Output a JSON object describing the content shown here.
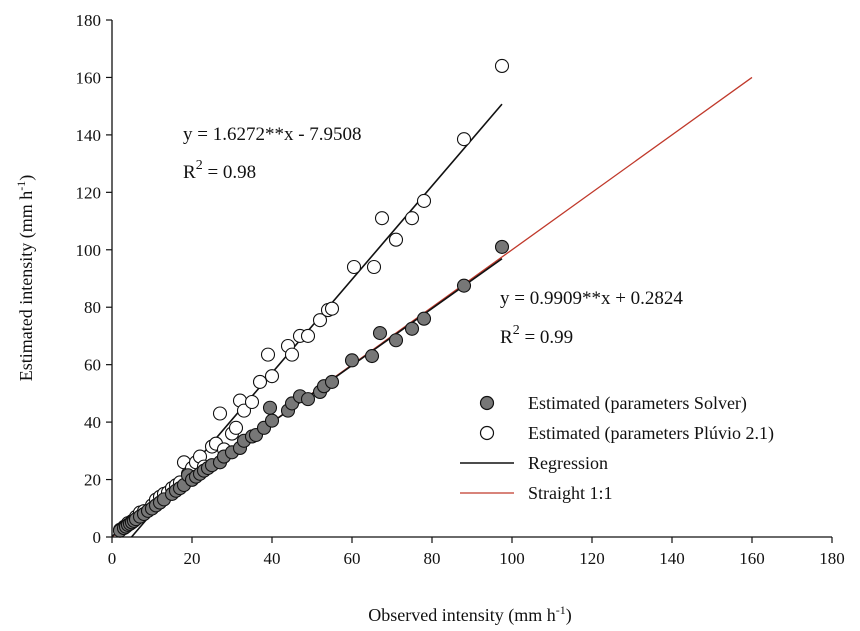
{
  "chart_data": {
    "type": "scatter",
    "xlabel": {
      "text": "Observed intensity (mm h",
      "sup": "-1",
      "close": ")"
    },
    "ylabel": {
      "text": "Estimated intensity (mm h",
      "sup": "-1",
      "close": ")"
    },
    "xlim": [
      0,
      180
    ],
    "ylim": [
      0,
      180
    ],
    "xticks": [
      0,
      20,
      40,
      60,
      80,
      100,
      120,
      140,
      160,
      180
    ],
    "yticks": [
      0,
      20,
      40,
      60,
      80,
      100,
      120,
      140,
      160,
      180
    ],
    "grid": false,
    "legend_position": "bottom-right",
    "series": [
      {
        "name": "Estimated (parameters Solver)",
        "marker": "filled-circle",
        "color": "#777777",
        "points": [
          [
            2,
            2.2
          ],
          [
            3,
            3.1
          ],
          [
            3.5,
            3.6
          ],
          [
            4,
            4.2
          ],
          [
            4.5,
            4.6
          ],
          [
            5,
            5.1
          ],
          [
            5.5,
            5.6
          ],
          [
            6,
            6.2
          ],
          [
            7,
            7.1
          ],
          [
            8,
            8.0
          ],
          [
            9,
            9.1
          ],
          [
            10,
            9.9
          ],
          [
            11,
            11.0
          ],
          [
            12,
            12.0
          ],
          [
            13,
            13.1
          ],
          [
            15,
            15.0
          ],
          [
            16,
            16.1
          ],
          [
            17,
            17.0
          ],
          [
            18,
            18.1
          ],
          [
            19,
            21.5
          ],
          [
            20,
            19.9
          ],
          [
            21,
            21.0
          ],
          [
            22,
            22.0
          ],
          [
            23,
            23.1
          ],
          [
            24,
            24.0
          ],
          [
            25,
            25.0
          ],
          [
            27,
            26.0
          ],
          [
            28,
            28.0
          ],
          [
            30,
            29.5
          ],
          [
            32,
            31.0
          ],
          [
            33,
            33.5
          ],
          [
            35,
            35.0
          ],
          [
            36,
            35.5
          ],
          [
            38,
            38.0
          ],
          [
            39.5,
            45.0
          ],
          [
            40,
            40.5
          ],
          [
            44,
            44.0
          ],
          [
            45,
            46.5
          ],
          [
            47,
            49.0
          ],
          [
            49,
            48.0
          ],
          [
            52,
            50.5
          ],
          [
            53,
            52.5
          ],
          [
            55,
            54.0
          ],
          [
            60,
            61.5
          ],
          [
            65,
            63.0
          ],
          [
            67,
            71.0
          ],
          [
            71,
            68.5
          ],
          [
            75,
            72.5
          ],
          [
            78,
            76.0
          ],
          [
            88,
            87.5
          ],
          [
            97.5,
            101.0
          ]
        ],
        "regression": {
          "slope": 0.9909,
          "intercept": 0.2824,
          "x_range": [
            0,
            97.5
          ],
          "equation": "y = 0.9909**x + 0.2824",
          "r2_prefix": "R",
          "r2_sup": "2",
          "r2_suffix": " = 0.99"
        }
      },
      {
        "name": "Estimated (parameters Plúvio 2.1)",
        "marker": "open-circle",
        "color": "#111111",
        "points": [
          [
            2,
            2.5
          ],
          [
            3,
            3.5
          ],
          [
            4,
            4.8
          ],
          [
            5,
            5.5
          ],
          [
            6,
            7.0
          ],
          [
            7,
            8.5
          ],
          [
            8,
            9.0
          ],
          [
            10,
            11.0
          ],
          [
            11,
            13.0
          ],
          [
            12,
            14.0
          ],
          [
            13,
            15.0
          ],
          [
            14,
            15.5
          ],
          [
            15,
            17.0
          ],
          [
            16,
            18.0
          ],
          [
            17,
            19.0
          ],
          [
            18,
            26.0
          ],
          [
            19,
            22.0
          ],
          [
            20,
            24.0
          ],
          [
            21,
            26.0
          ],
          [
            22,
            28.0
          ],
          [
            23,
            24.5
          ],
          [
            25,
            31.5
          ],
          [
            26,
            32.5
          ],
          [
            27,
            43.0
          ],
          [
            28,
            30.5
          ],
          [
            30,
            36.0
          ],
          [
            31,
            38.0
          ],
          [
            32,
            47.5
          ],
          [
            33,
            44.0
          ],
          [
            35,
            47.0
          ],
          [
            37,
            54.0
          ],
          [
            39,
            63.5
          ],
          [
            40,
            56.0
          ],
          [
            44,
            66.5
          ],
          [
            45,
            63.5
          ],
          [
            47,
            70.0
          ],
          [
            49,
            70.0
          ],
          [
            52,
            75.5
          ],
          [
            54,
            79.0
          ],
          [
            55,
            79.5
          ],
          [
            60.5,
            94.0
          ],
          [
            65.5,
            94.0
          ],
          [
            67.5,
            111.0
          ],
          [
            71,
            103.5
          ],
          [
            75,
            111.0
          ],
          [
            78,
            117.0
          ],
          [
            88,
            138.5
          ],
          [
            97.5,
            164.0
          ]
        ],
        "regression": {
          "slope": 1.6272,
          "intercept": -7.9508,
          "x_range": [
            0,
            97.5
          ],
          "equation": "y = 1.6272**x - 7.9508",
          "r2_prefix": "R",
          "r2_sup": "2",
          "r2_suffix": " = 0.98"
        }
      }
    ],
    "reference_line": {
      "name": "Straight  1:1",
      "color": "#c0392b",
      "x_range": [
        0,
        160
      ]
    },
    "legend": [
      {
        "label": "Estimated (parameters Solver)",
        "kind": "filled-circle"
      },
      {
        "label": "Estimated (parameters Plúvio 2.1)",
        "kind": "open-circle"
      },
      {
        "label": "Regression",
        "kind": "black-line"
      },
      {
        "label": "Straight  1:1",
        "kind": "red-line"
      }
    ]
  }
}
